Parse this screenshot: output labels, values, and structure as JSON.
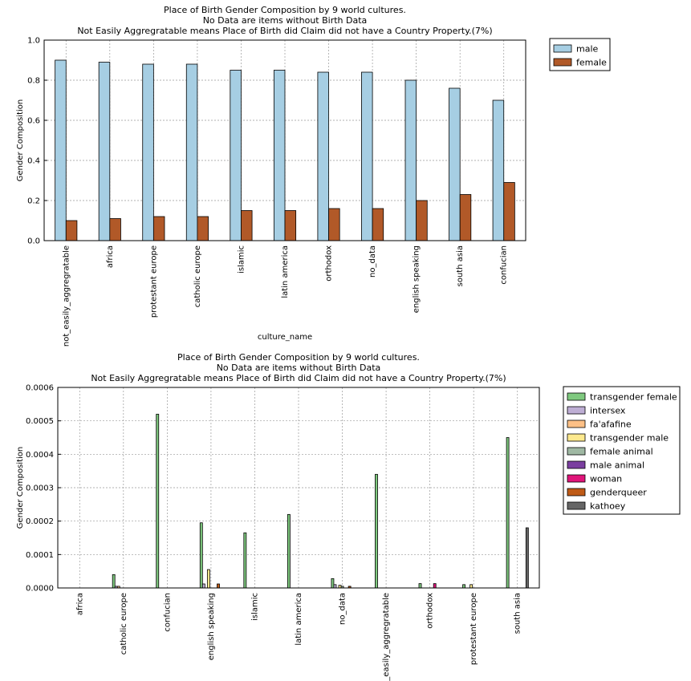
{
  "chart_data": [
    {
      "type": "bar",
      "title": [
        "Place of Birth Gender Composition by 9 world cultures.",
        "No Data are items without Birth Data",
        "Not Easily Aggregratable means Place of Birth did Claim did not have a Country Property.(7%)"
      ],
      "xlabel": "culture_name",
      "ylabel": "Gender Composition",
      "categories": [
        "not_easily_aggregratable",
        "africa",
        "protestant europe",
        "catholic europe",
        "islamic",
        "latin america",
        "orthodox",
        "no_data",
        "english speaking",
        "south asia",
        "confucian"
      ],
      "series": [
        {
          "name": "male",
          "color": "#a6cee3",
          "values": [
            0.9,
            0.89,
            0.88,
            0.88,
            0.85,
            0.85,
            0.84,
            0.84,
            0.8,
            0.76,
            0.7
          ]
        },
        {
          "name": "female",
          "color": "#b15928",
          "values": [
            0.1,
            0.11,
            0.12,
            0.12,
            0.15,
            0.15,
            0.16,
            0.16,
            0.2,
            0.23,
            0.29
          ]
        }
      ],
      "ylim": [
        0,
        1
      ],
      "yticks": [
        {
          "value": 0,
          "label": "0.0"
        },
        0.2,
        0.4,
        0.6,
        0.8,
        {
          "value": 1,
          "label": "1.0"
        }
      ],
      "grid": true
    },
    {
      "type": "bar",
      "title": [
        "Place of Birth Gender Composition by 9 world cultures.",
        "No Data are items without Birth Data",
        "Not Easily Aggregratable means Place of Birth did Claim did not have a Country Property.(7%)"
      ],
      "ylabel": "Gender Composition",
      "categories": [
        "africa",
        "catholic europe",
        "confucian",
        "english speaking",
        "islamic",
        "latin america",
        "no_data",
        "not_easily_aggregratable",
        "orthodox",
        "protestant europe",
        "south asia"
      ],
      "series": [
        {
          "name": "transgender female",
          "color": "#7fc97f",
          "values": [
            0,
            4e-05,
            0.00052,
            0.000195,
            0.000165,
            0.00022,
            2.8e-05,
            0.00034,
            1.3e-05,
            1e-05,
            0.00045
          ]
        },
        {
          "name": "intersex",
          "color": "#beaed4",
          "values": [
            0,
            5e-06,
            0,
            1.2e-05,
            0,
            0,
            1e-05,
            0,
            0,
            0,
            0
          ]
        },
        {
          "name": "fa'afafine",
          "color": "#fdc086",
          "values": [
            0,
            5e-06,
            0,
            0,
            0,
            0,
            0,
            0,
            0,
            0,
            0
          ]
        },
        {
          "name": "transgender male",
          "color": "#fde98e",
          "values": [
            0,
            0,
            0,
            5.5e-05,
            0,
            0,
            8e-06,
            0,
            0,
            1e-05,
            0
          ]
        },
        {
          "name": "female animal",
          "color": "#9fb8a3",
          "values": [
            0,
            0,
            0,
            0,
            0,
            0,
            5e-06,
            0,
            0,
            0,
            0
          ]
        },
        {
          "name": "male animal",
          "color": "#7b3fa0",
          "values": [
            0,
            0,
            0,
            0,
            0,
            0,
            0,
            0,
            0,
            0,
            0
          ]
        },
        {
          "name": "woman",
          "color": "#e0157a",
          "values": [
            0,
            0,
            0,
            0,
            0,
            0,
            0,
            0,
            1.3e-05,
            0,
            0
          ]
        },
        {
          "name": "genderqueer",
          "color": "#bf5b17",
          "values": [
            0,
            0,
            0,
            1.2e-05,
            0,
            0,
            5e-06,
            0,
            0,
            0,
            0
          ]
        },
        {
          "name": "kathoey",
          "color": "#666666",
          "values": [
            0,
            0,
            0,
            0,
            0,
            0,
            0,
            0,
            0,
            0,
            0.00018
          ]
        }
      ],
      "ylim": [
        0,
        0.0006
      ],
      "yticks": [
        {
          "value": 0,
          "label": "0.0000"
        },
        {
          "value": 0.0001,
          "label": "0.0001"
        },
        {
          "value": 0.0002,
          "label": "0.0002"
        },
        {
          "value": 0.0003,
          "label": "0.0003"
        },
        {
          "value": 0.0004,
          "label": "0.0004"
        },
        {
          "value": 0.0005,
          "label": "0.0005"
        },
        {
          "value": 0.0006,
          "label": "0.0006"
        }
      ],
      "grid": true
    }
  ]
}
